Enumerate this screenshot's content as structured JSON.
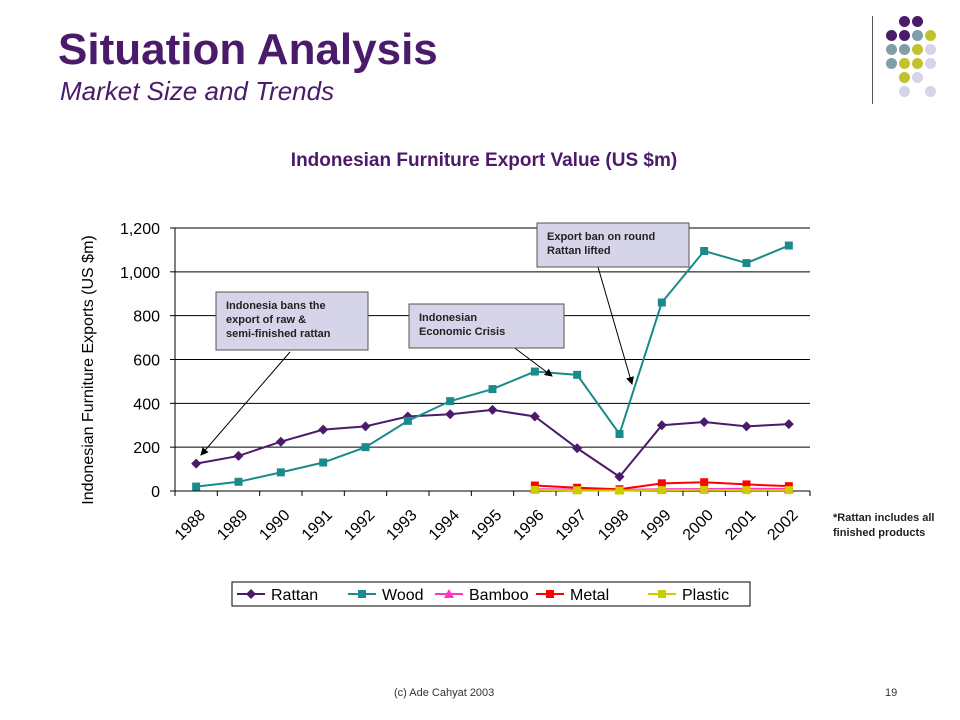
{
  "slide": {
    "title": "Situation Analysis",
    "subtitle": "Market Size and Trends",
    "footer": "(c) Ade Cahyat 2003",
    "page_number": "19",
    "note": "*Rattan includes all finished products",
    "colors": {
      "title": "#4b1a6b",
      "dot_purple": "#4b1a6b",
      "dot_teal": "#7f9ea6",
      "dot_olive": "#c2c22f",
      "dot_lavender": "#d5d4e8"
    }
  },
  "annotations": [
    {
      "text": [
        "Indonesia bans the",
        "export of raw &",
        "semi-finished rattan"
      ]
    },
    {
      "text": [
        "Indonesian",
        "Economic Crisis"
      ]
    },
    {
      "text": [
        "Export ban on round",
        "Rattan lifted"
      ]
    }
  ],
  "chart_data": {
    "type": "line",
    "title": "Indonesian Furniture Export Value (US $m)",
    "xlabel": "",
    "ylabel": "Indonesian Furniture Exports (US $m)",
    "ylim": [
      0,
      1200
    ],
    "yticks": [
      0,
      200,
      400,
      600,
      800,
      1000,
      1200
    ],
    "ytick_labels": [
      "0",
      "200",
      "400",
      "600",
      "800",
      "1,000",
      "1,200"
    ],
    "categories": [
      "1988",
      "1989",
      "1990",
      "1991",
      "1992",
      "1993",
      "1994",
      "1995",
      "1996",
      "1997",
      "1998",
      "1999",
      "2000",
      "2001",
      "2002"
    ],
    "grid": true,
    "legend_position": "bottom",
    "series": [
      {
        "name": "Rattan",
        "color": "#4b1a6b",
        "marker": "diamond",
        "values": [
          125,
          160,
          225,
          280,
          295,
          340,
          350,
          370,
          340,
          195,
          65,
          300,
          315,
          295,
          305
        ]
      },
      {
        "name": "Wood",
        "color": "#1a8a8a",
        "marker": "square",
        "values": [
          20,
          42,
          85,
          130,
          200,
          320,
          410,
          465,
          545,
          530,
          260,
          860,
          1095,
          1040,
          1120
        ]
      },
      {
        "name": "Bamboo",
        "color": "#ff33cc",
        "marker": "triangle",
        "values": [
          null,
          null,
          null,
          null,
          null,
          null,
          null,
          null,
          8,
          7,
          5,
          8,
          9,
          10,
          9
        ]
      },
      {
        "name": "Metal",
        "color": "#ff0000",
        "marker": "square",
        "values": [
          null,
          null,
          null,
          null,
          null,
          null,
          null,
          null,
          25,
          15,
          8,
          35,
          40,
          30,
          22
        ]
      },
      {
        "name": "Plastic",
        "color": "#cccc00",
        "marker": "square",
        "values": [
          null,
          null,
          null,
          null,
          null,
          null,
          null,
          null,
          5,
          3,
          2,
          4,
          5,
          4,
          4
        ]
      }
    ]
  }
}
